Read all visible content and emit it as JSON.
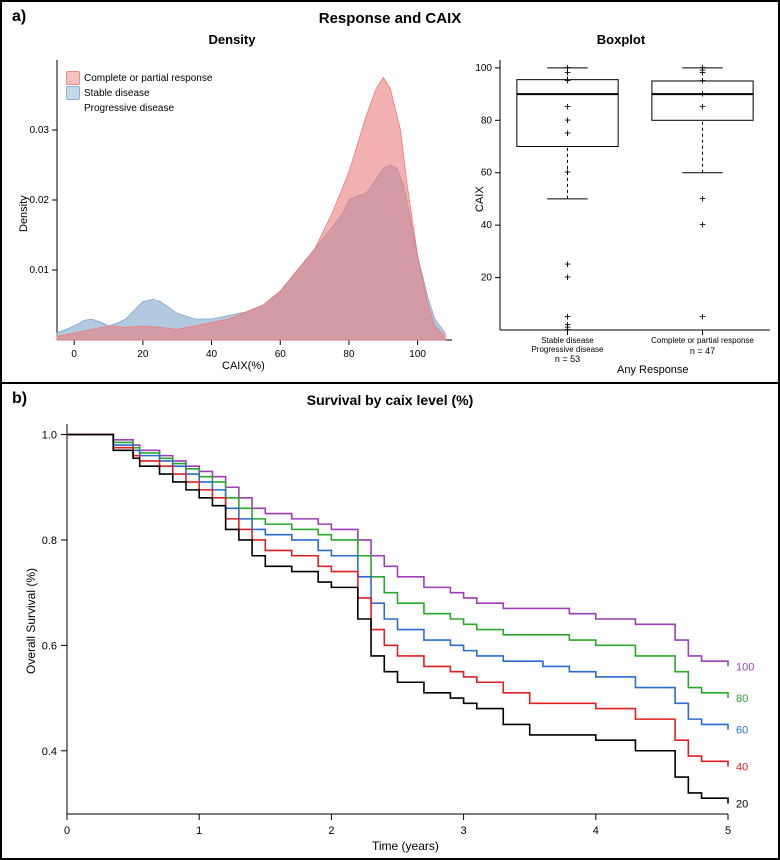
{
  "panel_a": {
    "label": "a)",
    "main_title": "Response and CAIX",
    "density": {
      "title": "Density",
      "xlabel": "CAIX(%)",
      "ylabel": "Density",
      "xlim": [
        -5,
        110
      ],
      "ylim": [
        0,
        0.04
      ],
      "xticks": [
        0,
        20,
        40,
        60,
        80,
        100
      ],
      "yticks": [
        0.01,
        0.02,
        0.03
      ],
      "legend": [
        {
          "label": "Complete or partial response",
          "color": "#f28a8a",
          "fill": "#f28a8a88"
        },
        {
          "label": "Stable disease",
          "color": "#8fb5d6",
          "fill": "#8fb5d688"
        },
        {
          "label": "Progressive disease",
          "color": "#8fb5d6",
          "fill": "#8fb5d688"
        }
      ],
      "series_response": {
        "color": "#eb7b7b",
        "fill": "#eb7b7b99",
        "points": [
          [
            -5,
            0.0005
          ],
          [
            0,
            0.001
          ],
          [
            5,
            0.0015
          ],
          [
            10,
            0.002
          ],
          [
            15,
            0.0018
          ],
          [
            20,
            0.002
          ],
          [
            25,
            0.0018
          ],
          [
            30,
            0.0015
          ],
          [
            35,
            0.002
          ],
          [
            40,
            0.0025
          ],
          [
            45,
            0.003
          ],
          [
            50,
            0.004
          ],
          [
            55,
            0.005
          ],
          [
            60,
            0.007
          ],
          [
            65,
            0.01
          ],
          [
            70,
            0.013
          ],
          [
            75,
            0.018
          ],
          [
            80,
            0.024
          ],
          [
            85,
            0.032
          ],
          [
            88,
            0.036
          ],
          [
            90,
            0.0375
          ],
          [
            92,
            0.036
          ],
          [
            95,
            0.03
          ],
          [
            97,
            0.022
          ],
          [
            100,
            0.012
          ],
          [
            103,
            0.005
          ],
          [
            105,
            0.002
          ],
          [
            108,
            0.0005
          ]
        ]
      },
      "series_stable": {
        "color": "#7ea6cc",
        "fill": "#7ea6cc99",
        "points": [
          [
            -5,
            0.001
          ],
          [
            0,
            0.002
          ],
          [
            3,
            0.0028
          ],
          [
            5,
            0.003
          ],
          [
            8,
            0.0025
          ],
          [
            10,
            0.002
          ],
          [
            13,
            0.0025
          ],
          [
            15,
            0.003
          ],
          [
            18,
            0.0045
          ],
          [
            20,
            0.0055
          ],
          [
            23,
            0.0058
          ],
          [
            25,
            0.0055
          ],
          [
            28,
            0.0045
          ],
          [
            30,
            0.0038
          ],
          [
            35,
            0.003
          ],
          [
            40,
            0.003
          ],
          [
            45,
            0.0035
          ],
          [
            50,
            0.004
          ],
          [
            55,
            0.005
          ],
          [
            60,
            0.007
          ],
          [
            65,
            0.01
          ],
          [
            70,
            0.013
          ],
          [
            75,
            0.016
          ],
          [
            78,
            0.018
          ],
          [
            80,
            0.02
          ],
          [
            82,
            0.0205
          ],
          [
            85,
            0.021
          ],
          [
            88,
            0.023
          ],
          [
            90,
            0.0245
          ],
          [
            92,
            0.025
          ],
          [
            94,
            0.0245
          ],
          [
            96,
            0.022
          ],
          [
            98,
            0.017
          ],
          [
            100,
            0.012
          ],
          [
            103,
            0.006
          ],
          [
            105,
            0.003
          ],
          [
            108,
            0.001
          ]
        ]
      },
      "background_color": "#ffffff",
      "fontsize_label": 11,
      "fontsize_tick": 10
    },
    "boxplot": {
      "title": "Boxplot",
      "ylabel": "CAIX",
      "xlabel": "Any Response",
      "ylim": [
        0,
        103
      ],
      "yticks": [
        20,
        40,
        60,
        80,
        100
      ],
      "groups": [
        {
          "label_line1": "Stable disease",
          "label_line2": "Progressive disease",
          "n_label": "n = 53",
          "q1": 70,
          "median": 90,
          "q3": 95.5,
          "whisker_low": 50,
          "whisker_high": 100,
          "outliers": [
            0,
            1,
            2,
            5,
            20,
            25,
            60,
            75,
            80,
            85,
            95,
            98,
            100
          ]
        },
        {
          "label_line1": "Complete or partial response",
          "label_line2": "",
          "n_label": "n = 47",
          "q1": 80,
          "median": 90,
          "q3": 95,
          "whisker_low": 60,
          "whisker_high": 100,
          "outliers": [
            5,
            40,
            50,
            85,
            90,
            95,
            98,
            99,
            100
          ]
        }
      ],
      "box_fill": "#ffffff",
      "box_stroke": "#000000",
      "median_width": 2,
      "outlier_marker": "+",
      "fontsize_label": 11,
      "fontsize_tick": 10
    }
  },
  "panel_b": {
    "label": "b)",
    "title": "Survival by caix level (%)",
    "xlabel": "Time (years)",
    "ylabel": "Overall Survival (%)",
    "xlim": [
      0,
      5
    ],
    "ylim": [
      0.28,
      1.02
    ],
    "xticks": [
      0,
      1,
      2,
      3,
      4,
      5
    ],
    "yticks": [
      0.4,
      0.6,
      0.8,
      1.0
    ],
    "line_width": 1.6,
    "series": [
      {
        "label": "100",
        "color": "#9c3fb8",
        "points": [
          [
            0,
            1.0
          ],
          [
            0.3,
            1.0
          ],
          [
            0.35,
            0.99
          ],
          [
            0.5,
            0.98
          ],
          [
            0.55,
            0.97
          ],
          [
            0.7,
            0.96
          ],
          [
            0.8,
            0.95
          ],
          [
            0.9,
            0.94
          ],
          [
            1.0,
            0.93
          ],
          [
            1.1,
            0.92
          ],
          [
            1.2,
            0.9
          ],
          [
            1.3,
            0.88
          ],
          [
            1.4,
            0.86
          ],
          [
            1.5,
            0.85
          ],
          [
            1.7,
            0.84
          ],
          [
            1.9,
            0.83
          ],
          [
            2.0,
            0.82
          ],
          [
            2.2,
            0.8
          ],
          [
            2.3,
            0.77
          ],
          [
            2.4,
            0.75
          ],
          [
            2.5,
            0.73
          ],
          [
            2.7,
            0.71
          ],
          [
            2.9,
            0.7
          ],
          [
            3.0,
            0.69
          ],
          [
            3.1,
            0.68
          ],
          [
            3.3,
            0.67
          ],
          [
            3.6,
            0.67
          ],
          [
            3.8,
            0.66
          ],
          [
            4.0,
            0.65
          ],
          [
            4.3,
            0.64
          ],
          [
            4.5,
            0.64
          ],
          [
            4.6,
            0.61
          ],
          [
            4.7,
            0.58
          ],
          [
            4.8,
            0.57
          ],
          [
            5.0,
            0.56
          ]
        ]
      },
      {
        "label": "80",
        "color": "#2ba82b",
        "points": [
          [
            0,
            1.0
          ],
          [
            0.3,
            1.0
          ],
          [
            0.35,
            0.985
          ],
          [
            0.5,
            0.975
          ],
          [
            0.55,
            0.965
          ],
          [
            0.7,
            0.955
          ],
          [
            0.8,
            0.945
          ],
          [
            0.9,
            0.935
          ],
          [
            1.0,
            0.92
          ],
          [
            1.1,
            0.91
          ],
          [
            1.2,
            0.88
          ],
          [
            1.3,
            0.86
          ],
          [
            1.4,
            0.84
          ],
          [
            1.5,
            0.83
          ],
          [
            1.7,
            0.82
          ],
          [
            1.9,
            0.81
          ],
          [
            2.0,
            0.8
          ],
          [
            2.2,
            0.77
          ],
          [
            2.3,
            0.73
          ],
          [
            2.4,
            0.7
          ],
          [
            2.5,
            0.68
          ],
          [
            2.7,
            0.66
          ],
          [
            2.9,
            0.65
          ],
          [
            3.0,
            0.64
          ],
          [
            3.1,
            0.63
          ],
          [
            3.3,
            0.62
          ],
          [
            3.6,
            0.62
          ],
          [
            3.8,
            0.61
          ],
          [
            4.0,
            0.6
          ],
          [
            4.3,
            0.58
          ],
          [
            4.5,
            0.58
          ],
          [
            4.6,
            0.55
          ],
          [
            4.7,
            0.52
          ],
          [
            4.8,
            0.51
          ],
          [
            5.0,
            0.5
          ]
        ]
      },
      {
        "label": "60",
        "color": "#2b6bd4",
        "points": [
          [
            0,
            1.0
          ],
          [
            0.3,
            1.0
          ],
          [
            0.35,
            0.98
          ],
          [
            0.5,
            0.97
          ],
          [
            0.55,
            0.96
          ],
          [
            0.7,
            0.95
          ],
          [
            0.8,
            0.94
          ],
          [
            0.9,
            0.925
          ],
          [
            1.0,
            0.91
          ],
          [
            1.1,
            0.895
          ],
          [
            1.2,
            0.86
          ],
          [
            1.3,
            0.84
          ],
          [
            1.4,
            0.82
          ],
          [
            1.5,
            0.81
          ],
          [
            1.7,
            0.8
          ],
          [
            1.9,
            0.78
          ],
          [
            2.0,
            0.77
          ],
          [
            2.2,
            0.73
          ],
          [
            2.3,
            0.68
          ],
          [
            2.4,
            0.65
          ],
          [
            2.5,
            0.63
          ],
          [
            2.7,
            0.61
          ],
          [
            2.9,
            0.6
          ],
          [
            3.0,
            0.59
          ],
          [
            3.1,
            0.58
          ],
          [
            3.3,
            0.57
          ],
          [
            3.6,
            0.56
          ],
          [
            3.8,
            0.55
          ],
          [
            4.0,
            0.54
          ],
          [
            4.3,
            0.52
          ],
          [
            4.5,
            0.52
          ],
          [
            4.6,
            0.49
          ],
          [
            4.7,
            0.46
          ],
          [
            4.8,
            0.45
          ],
          [
            5.0,
            0.44
          ]
        ]
      },
      {
        "label": "40",
        "color": "#e02020",
        "points": [
          [
            0,
            1.0
          ],
          [
            0.3,
            1.0
          ],
          [
            0.35,
            0.975
          ],
          [
            0.5,
            0.96
          ],
          [
            0.55,
            0.95
          ],
          [
            0.7,
            0.94
          ],
          [
            0.8,
            0.925
          ],
          [
            0.9,
            0.91
          ],
          [
            1.0,
            0.895
          ],
          [
            1.1,
            0.88
          ],
          [
            1.2,
            0.84
          ],
          [
            1.3,
            0.82
          ],
          [
            1.4,
            0.8
          ],
          [
            1.5,
            0.78
          ],
          [
            1.7,
            0.77
          ],
          [
            1.9,
            0.75
          ],
          [
            2.0,
            0.74
          ],
          [
            2.2,
            0.69
          ],
          [
            2.3,
            0.63
          ],
          [
            2.4,
            0.6
          ],
          [
            2.5,
            0.58
          ],
          [
            2.7,
            0.56
          ],
          [
            2.9,
            0.55
          ],
          [
            3.0,
            0.54
          ],
          [
            3.1,
            0.53
          ],
          [
            3.3,
            0.51
          ],
          [
            3.5,
            0.49
          ],
          [
            3.8,
            0.49
          ],
          [
            4.0,
            0.48
          ],
          [
            4.3,
            0.46
          ],
          [
            4.5,
            0.46
          ],
          [
            4.6,
            0.42
          ],
          [
            4.7,
            0.39
          ],
          [
            4.8,
            0.38
          ],
          [
            5.0,
            0.37
          ]
        ]
      },
      {
        "label": "20",
        "color": "#000000",
        "points": [
          [
            0,
            1.0
          ],
          [
            0.3,
            1.0
          ],
          [
            0.35,
            0.97
          ],
          [
            0.5,
            0.955
          ],
          [
            0.55,
            0.94
          ],
          [
            0.7,
            0.925
          ],
          [
            0.8,
            0.91
          ],
          [
            0.9,
            0.895
          ],
          [
            1.0,
            0.88
          ],
          [
            1.1,
            0.865
          ],
          [
            1.2,
            0.82
          ],
          [
            1.3,
            0.8
          ],
          [
            1.4,
            0.77
          ],
          [
            1.5,
            0.75
          ],
          [
            1.7,
            0.74
          ],
          [
            1.9,
            0.72
          ],
          [
            2.0,
            0.71
          ],
          [
            2.2,
            0.65
          ],
          [
            2.3,
            0.58
          ],
          [
            2.4,
            0.55
          ],
          [
            2.5,
            0.53
          ],
          [
            2.7,
            0.51
          ],
          [
            2.9,
            0.5
          ],
          [
            3.0,
            0.49
          ],
          [
            3.1,
            0.48
          ],
          [
            3.3,
            0.45
          ],
          [
            3.5,
            0.43
          ],
          [
            3.8,
            0.43
          ],
          [
            4.0,
            0.42
          ],
          [
            4.3,
            0.4
          ],
          [
            4.5,
            0.4
          ],
          [
            4.6,
            0.35
          ],
          [
            4.7,
            0.32
          ],
          [
            4.8,
            0.31
          ],
          [
            5.0,
            0.3
          ]
        ]
      }
    ],
    "label_colors": {
      "100": "#9c3fb8",
      "80": "#2ba82b",
      "60": "#2b6bd4",
      "40": "#e02020",
      "20": "#000000"
    },
    "fontsize_label": 12,
    "fontsize_tick": 11
  }
}
